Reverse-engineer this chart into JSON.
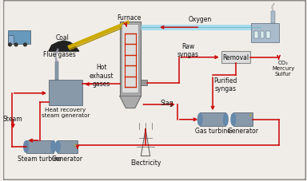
{
  "bg_color": "#f0ede8",
  "border_color": "#888888",
  "arrow_color": "#cc0000",
  "box_color": "#dddddd",
  "box_edge": "#888888",
  "text_color": "#111111",
  "oxygen_pipe_color": "#aaddee",
  "coal_ramp_color": "#ccaa00",
  "furnace_color": "#aaaaaa",
  "furnace_inner": "#cc2200",
  "labels": {
    "coal": "Coal",
    "oxygen": "Oxygen",
    "furnace": "Furnace",
    "flue_gases": "Flue gases",
    "hot_exhaust": "Hot\nexhaust\ngases",
    "raw_syngas": "Raw\nsyngas",
    "removal": "Removal",
    "co2": "CO₂\nMercury\nSulfur",
    "purified": "Purified\nsyngas",
    "slag": "Slag",
    "heat_recovery": "Heat recovery\nsteam generator",
    "steam_turbine": "Steam turbine",
    "generator1": "Generator",
    "gas_turbine": "Gas turbine",
    "generator2": "Generator",
    "electricity": "Electricity",
    "steam": "Steam"
  }
}
